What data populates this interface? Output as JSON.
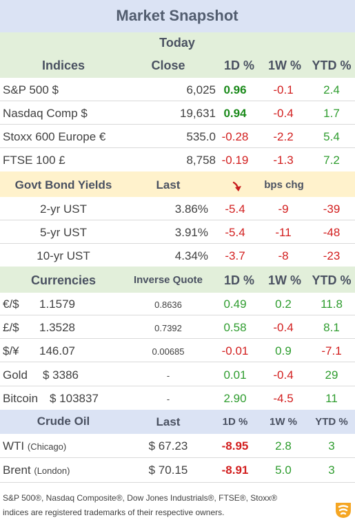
{
  "title": "Market Snapshot",
  "section_today": "Today",
  "indices": {
    "header": {
      "name": "Indices",
      "close": "Close",
      "d1": "1D %",
      "w1": "1W %",
      "ytd": "YTD %"
    },
    "rows": [
      {
        "name": "S&P 500  $",
        "close": "6,025",
        "d1": "0.96",
        "w1": "-0.1",
        "ytd": "2.4"
      },
      {
        "name": "Nasdaq Comp  $",
        "close": "19,631",
        "d1": "0.94",
        "w1": "-0.4",
        "ytd": "1.7"
      },
      {
        "name": "Stoxx 600 Europe  €",
        "close": "535.0",
        "d1": "-0.28",
        "w1": "-2.2",
        "ytd": "5.4"
      },
      {
        "name": "FTSE 100  £",
        "close": "8,758",
        "d1": "-0.19",
        "w1": "-1.3",
        "ytd": "7.2"
      }
    ]
  },
  "bonds": {
    "header": {
      "name": "Govt Bond Yields",
      "last": "Last",
      "arrow_icon": "down-arrow-icon",
      "chg": "bps chg"
    },
    "rows": [
      {
        "name": "2-yr UST",
        "last": "3.86%",
        "d1": "-5.4",
        "w1": "-9",
        "ytd": "-39"
      },
      {
        "name": "5-yr UST",
        "last": "3.91%",
        "d1": "-5.4",
        "w1": "-11",
        "ytd": "-48"
      },
      {
        "name": "10-yr UST",
        "last": "4.34%",
        "d1": "-3.7",
        "w1": "-8",
        "ytd": "-23"
      }
    ]
  },
  "currencies": {
    "header": {
      "name": "Currencies",
      "inverse": "Inverse Quote",
      "d1": "1D %",
      "w1": "1W %",
      "ytd": "YTD %"
    },
    "rows": [
      {
        "name": "€/$",
        "value": "1.1579",
        "inverse": "0.8636",
        "d1": "0.49",
        "w1": "0.2",
        "ytd": "11.8"
      },
      {
        "name": "£/$",
        "value": "1.3528",
        "inverse": "0.7392",
        "d1": "0.58",
        "w1": "-0.4",
        "ytd": "8.1"
      },
      {
        "name": "$/¥",
        "value": "146.07",
        "inverse": "0.00685",
        "d1": "-0.01",
        "w1": "0.9",
        "ytd": "-7.1"
      },
      {
        "name": "Gold",
        "value": "$ 3386",
        "inverse": "-",
        "d1": "0.01",
        "w1": "-0.4",
        "ytd": "29"
      },
      {
        "name": "Bitcoin",
        "value": "$ 103837",
        "inverse": "-",
        "d1": "2.90",
        "w1": "-4.5",
        "ytd": "11"
      }
    ]
  },
  "oil": {
    "header": {
      "name": "Crude Oil",
      "last": "Last",
      "d1": "1D %",
      "w1": "1W %",
      "ytd": "YTD %"
    },
    "rows": [
      {
        "name": "WTI",
        "loc": "(Chicago)",
        "last": "$ 67.23",
        "d1": "-8.95",
        "w1": "2.8",
        "ytd": "3"
      },
      {
        "name": "Brent",
        "loc": "(London)",
        "last": "$ 70.15",
        "d1": "-8.91",
        "w1": "5.0",
        "ytd": "3"
      }
    ]
  },
  "footer": {
    "line1": "S&P 500®, Nasdaq Composite®, Dow Jones Industrials®, FTSE®, Stoxx®",
    "line2": "indices are registered trademarks of their respective owners."
  },
  "colors": {
    "positive": "#2e9c2e",
    "negative": "#d21e1e",
    "title_band": "#dbe3f4",
    "green_band": "#e2efda",
    "yellow_band": "#fff2cc",
    "logo": "#f5a623"
  },
  "chart_data": {
    "type": "table",
    "title": "Market Snapshot",
    "columns": [
      "Close/Last",
      "1D %",
      "1W %",
      "YTD %"
    ],
    "groups": [
      "Indices",
      "Govt Bond Yields",
      "Currencies",
      "Crude Oil"
    ]
  }
}
